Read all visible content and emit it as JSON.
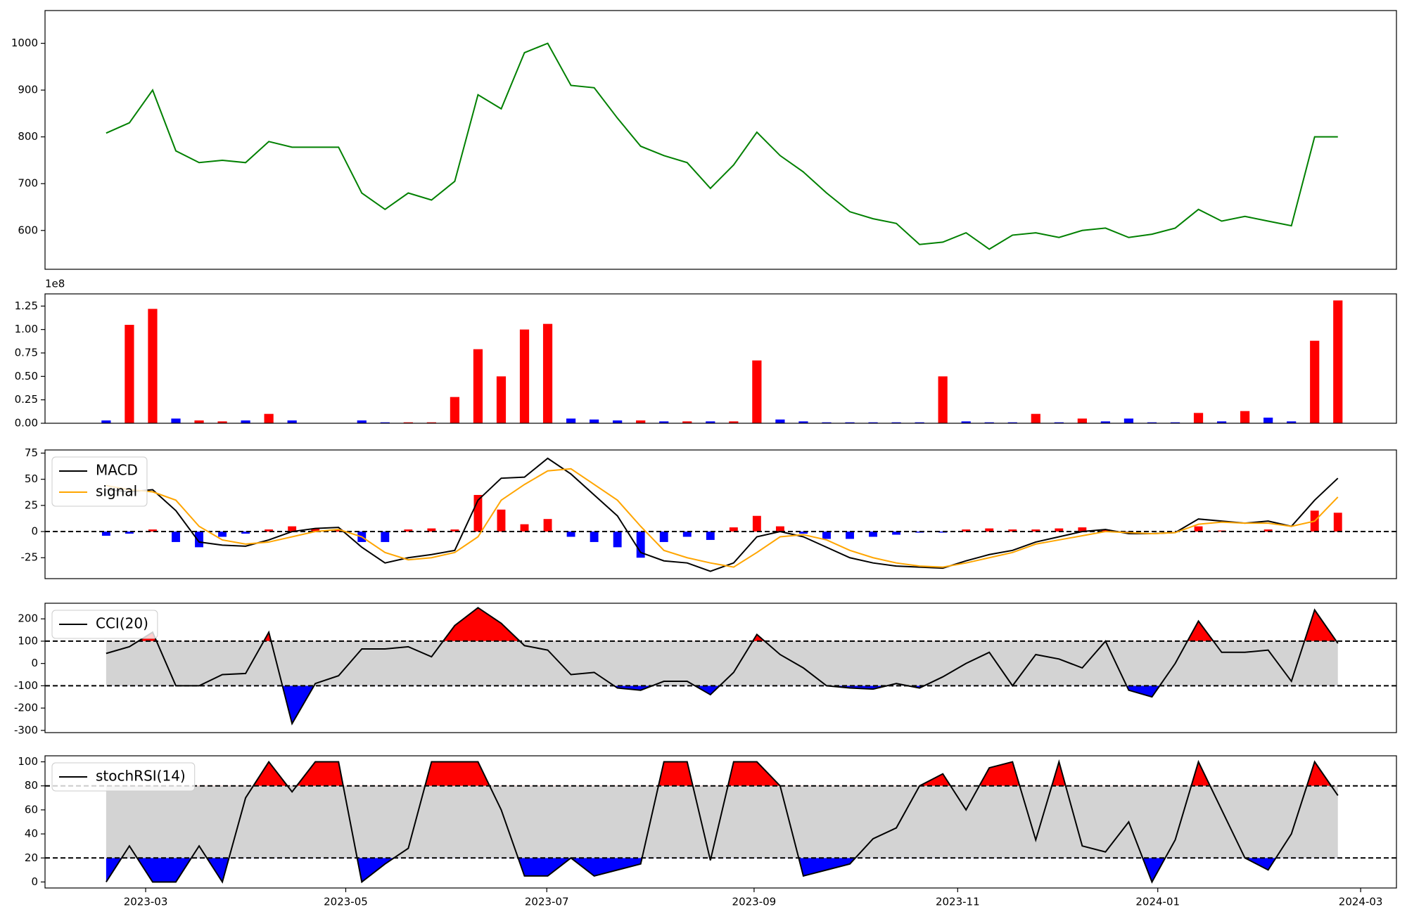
{
  "chart_data": [
    {
      "type": "line",
      "series": [
        {
          "color": "#008000",
          "values": [
            808,
            830,
            900,
            770,
            745,
            750,
            745,
            790,
            778,
            778,
            778,
            680,
            645,
            680,
            665,
            705,
            890,
            860,
            980,
            1000,
            910,
            905,
            840,
            780,
            760,
            745,
            690,
            740,
            810,
            760,
            725,
            680,
            640,
            625,
            615,
            570,
            575,
            595,
            560,
            590,
            595,
            585,
            600,
            605,
            585,
            592,
            605,
            645,
            620,
            630,
            620,
            610,
            800,
            800
          ]
        }
      ],
      "xlim": [
        -2.63,
        55.52
      ],
      "ylim": [
        517,
        1070
      ],
      "yticks": [
        600,
        700,
        800,
        900,
        1000
      ]
    },
    {
      "type": "bar",
      "offset_label": "1e8",
      "values": [
        0.03,
        1.05,
        1.22,
        0.05,
        0.03,
        0.02,
        0.03,
        0.1,
        0.03,
        0,
        0,
        0.03,
        0.01,
        0.01,
        0.01,
        0.28,
        0.79,
        0.5,
        1.0,
        1.06,
        0.05,
        0.04,
        0.03,
        0.03,
        0.02,
        0.02,
        0.02,
        0.02,
        0.67,
        0.04,
        0.02,
        0.01,
        0.01,
        0.01,
        0.01,
        0.01,
        0.5,
        0.02,
        0.01,
        0.01,
        0.1,
        0.01,
        0.05,
        0.02,
        0.05,
        0.01,
        0.01,
        0.11,
        0.02,
        0.13,
        0.06,
        0.02,
        0.88,
        1.31
      ],
      "colors": [
        "blue",
        "red",
        "red",
        "blue",
        "red",
        "red",
        "blue",
        "red",
        "blue",
        "blue",
        "blue",
        "blue",
        "blue",
        "red",
        "red",
        "red",
        "red",
        "red",
        "red",
        "red",
        "blue",
        "blue",
        "blue",
        "red",
        "blue",
        "red",
        "blue",
        "red",
        "red",
        "blue",
        "blue",
        "blue",
        "blue",
        "blue",
        "blue",
        "blue",
        "red",
        "blue",
        "blue",
        "blue",
        "red",
        "blue",
        "red",
        "blue",
        "blue",
        "blue",
        "blue",
        "red",
        "blue",
        "red",
        "blue",
        "blue",
        "red",
        "red"
      ],
      "xlim": [
        -2.63,
        55.52
      ],
      "ylim": [
        0,
        1.38
      ],
      "yticks": [
        {
          "value": 0,
          "label": "0.00"
        },
        {
          "value": 0.25,
          "label": "0.25"
        },
        {
          "value": 0.5,
          "label": "0.50"
        },
        {
          "value": 0.75,
          "label": "0.75"
        },
        {
          "value": 1,
          "label": "1.00"
        },
        {
          "value": 1.25,
          "label": "1.25"
        }
      ]
    },
    {
      "type": "line",
      "legend": "upper left",
      "series": [
        {
          "name": "MACD",
          "color": "black",
          "values": [
            40,
            38,
            40,
            20,
            -10,
            -13,
            -14,
            -8,
            0,
            3,
            4,
            -15,
            -30,
            -25,
            -22,
            -18,
            30,
            51,
            52,
            70,
            55,
            35,
            15,
            -20,
            -28,
            -30,
            -38,
            -30,
            -5,
            0,
            -5,
            -15,
            -25,
            -30,
            -33,
            -34,
            -35,
            -28,
            -22,
            -18,
            -10,
            -5,
            0,
            2,
            -2,
            -2,
            -1,
            12,
            10,
            8,
            10,
            5,
            30,
            51
          ]
        },
        {
          "name": "signal",
          "color": "orange",
          "values": [
            44,
            40,
            38,
            30,
            5,
            -8,
            -12,
            -10,
            -5,
            0,
            2,
            -5,
            -20,
            -27,
            -25,
            -20,
            -5,
            30,
            45,
            58,
            60,
            45,
            30,
            5,
            -18,
            -25,
            -30,
            -34,
            -20,
            -5,
            -3,
            -8,
            -18,
            -25,
            -30,
            -33,
            -34,
            -30,
            -25,
            -20,
            -12,
            -8,
            -4,
            0,
            -1,
            -2,
            -1,
            7,
            9,
            8,
            8,
            5,
            10,
            33
          ]
        }
      ],
      "histogram": {
        "positive_color": "red",
        "negative_color": "blue",
        "values": [
          -4,
          -2,
          2,
          -10,
          -15,
          -5,
          -2,
          2,
          5,
          3,
          2,
          -10,
          -10,
          2,
          3,
          2,
          35,
          21,
          7,
          12,
          -5,
          -10,
          -15,
          -25,
          -10,
          -5,
          -8,
          4,
          15,
          5,
          -2,
          -7,
          -7,
          -5,
          -3,
          -1,
          -1,
          2,
          3,
          2,
          2,
          3,
          4,
          2,
          -1,
          0,
          0,
          5,
          1,
          0,
          2,
          0,
          20,
          18
        ]
      },
      "hlines": [
        0
      ],
      "xlim": [
        -2.63,
        55.52
      ],
      "ylim": [
        -45,
        78
      ],
      "yticks": [
        -25,
        0,
        25,
        50,
        75
      ]
    },
    {
      "type": "line",
      "legend": "upper left",
      "series": [
        {
          "name": "CCI(20)",
          "color": "black",
          "values": [
            45,
            75,
            140,
            -100,
            -100,
            -50,
            -45,
            140,
            -270,
            -90,
            -55,
            65,
            65,
            75,
            30,
            170,
            250,
            180,
            80,
            60,
            -50,
            -40,
            -110,
            -120,
            -80,
            -80,
            -140,
            -40,
            130,
            40,
            -20,
            -100,
            -110,
            -115,
            -90,
            -110,
            -60,
            0,
            50,
            -100,
            40,
            20,
            -20,
            100,
            -120,
            -150,
            0,
            190,
            50,
            50,
            60,
            -80,
            240,
            90
          ]
        }
      ],
      "bands": [
        -100,
        100
      ],
      "inside_color": "lightgray",
      "above_color": "red",
      "below_color": "blue",
      "xlim": [
        -2.63,
        55.52
      ],
      "ylim": [
        -310,
        270
      ],
      "yticks": [
        -300,
        -200,
        -100,
        0,
        100,
        200
      ]
    },
    {
      "type": "line",
      "legend": "upper left",
      "series": [
        {
          "name": "stochRSI(14)",
          "color": "black",
          "values": [
            0,
            30,
            0,
            0,
            30,
            0,
            70,
            100,
            75,
            100,
            100,
            0,
            15,
            28,
            100,
            100,
            100,
            60,
            5,
            5,
            20,
            5,
            10,
            15,
            100,
            100,
            18,
            100,
            100,
            80,
            5,
            10,
            15,
            36,
            45,
            80,
            90,
            60,
            95,
            100,
            35,
            100,
            30,
            25,
            50,
            0,
            35,
            100,
            60,
            20,
            10,
            40,
            100,
            72
          ]
        }
      ],
      "bands": [
        20,
        80
      ],
      "inside_color": "lightgray",
      "above_color": "red",
      "below_color": "blue",
      "xlim": [
        -2.63,
        55.52
      ],
      "ylim": [
        -5,
        105
      ],
      "yticks": [
        0,
        20,
        40,
        60,
        80,
        100
      ],
      "xticks": [
        {
          "value": 1.7,
          "label": "2023-03"
        },
        {
          "value": 10.31,
          "label": "2023-05"
        },
        {
          "value": 18.96,
          "label": "2023-07"
        },
        {
          "value": 27.88,
          "label": "2023-09"
        },
        {
          "value": 36.64,
          "label": "2023-11"
        },
        {
          "value": 45.25,
          "label": "2024-01"
        },
        {
          "value": 53.98,
          "label": "2024-03"
        }
      ]
    }
  ]
}
